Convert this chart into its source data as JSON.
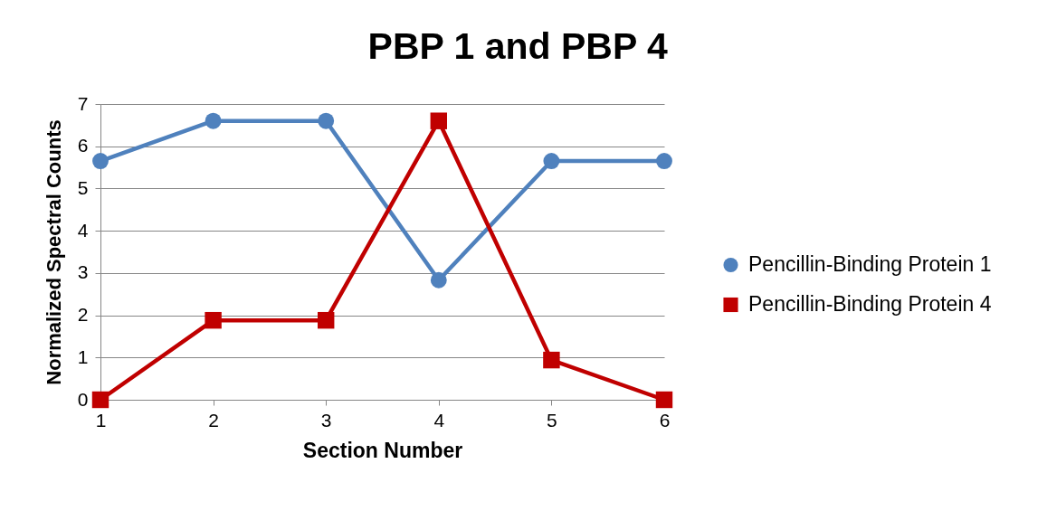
{
  "chart_data": {
    "type": "line",
    "title": "PBP 1 and PBP 4",
    "xlabel": "Section Number",
    "ylabel": "Normalized Spectral Counts",
    "categories": [
      "1",
      "2",
      "3",
      "4",
      "5",
      "6"
    ],
    "series": [
      {
        "name": "Pencillin-Binding Protein 1",
        "color": "#4f81bd",
        "marker": "circle",
        "values": [
          5.65,
          6.6,
          6.6,
          2.83,
          5.65,
          5.65
        ]
      },
      {
        "name": "Pencillin-Binding Protein 4",
        "color": "#c00000",
        "marker": "square",
        "values": [
          0,
          1.88,
          1.88,
          6.6,
          0.94,
          0
        ]
      }
    ],
    "ylim": [
      0,
      7
    ],
    "yticks": [
      0,
      1,
      2,
      3,
      4,
      5,
      6,
      7
    ],
    "grid": "y",
    "legend": "right",
    "line_style": "solid"
  }
}
